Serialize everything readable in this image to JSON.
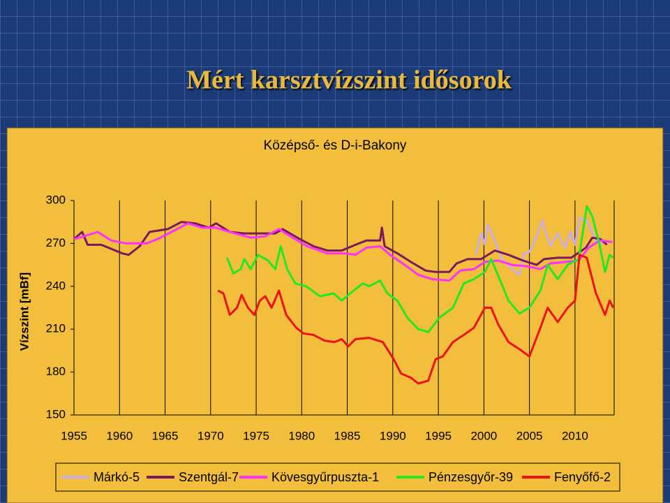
{
  "slide": {
    "title": "Mért karsztvízszint idősorok"
  },
  "chart_data": {
    "type": "line",
    "title": "Középső- és D-i-Bakony",
    "y_label": "Vízszint [mBf]",
    "xlim": [
      1955,
      2014.3
    ],
    "xticks": [
      1955,
      1960,
      1965,
      1970,
      1975,
      1980,
      1985,
      1990,
      1995,
      2000,
      2005,
      2010
    ],
    "ylim": [
      150,
      300
    ],
    "yticks": [
      150,
      180,
      210,
      240,
      270,
      300
    ],
    "grid": "x",
    "legend": "bottom",
    "series": [
      {
        "name": "Márkó-5",
        "color": "#c9aee3",
        "x": [
          1999.1,
          1999.7,
          2000.1,
          2000.4,
          2001.2,
          2002.0,
          2003.1,
          2003.9,
          2004.4,
          2005.0,
          2005.7,
          2006.4,
          2007.3,
          2008.1,
          2008.9,
          2009.5,
          2010.0,
          2010.5,
          2011.3,
          2012.3,
          2013.0
        ],
        "values": [
          262,
          277,
          269,
          283,
          272,
          259,
          252,
          248,
          263,
          264,
          274,
          286,
          268,
          277,
          267,
          278,
          269,
          288,
          286,
          272,
          269
        ]
      },
      {
        "name": "Szentgál-7",
        "color": "#7a1a5c",
        "x": [
          1955.0,
          1955.9,
          1956.5,
          1958.0,
          1960.3,
          1961.0,
          1962.2,
          1963.3,
          1965.3,
          1966.8,
          1968.3,
          1969.8,
          1970.6,
          1972.1,
          1973.7,
          1975.2,
          1977.1,
          1977.9,
          1979.8,
          1981.3,
          1982.8,
          1984.4,
          1985.9,
          1987.1,
          1988.6,
          1988.8,
          1989.1,
          1990.5,
          1992.0,
          1993.6,
          1994.7,
          1996.2,
          1997.0,
          1998.2,
          1999.7,
          2001.2,
          2002.7,
          2004.3,
          2005.8,
          2006.6,
          2008.1,
          2009.6,
          2011.2,
          2011.9,
          2012.8,
          2013.5
        ],
        "values": [
          273,
          278,
          269,
          269,
          263,
          262,
          268,
          278,
          280,
          285,
          284,
          281,
          284,
          278,
          277,
          277,
          277,
          280,
          273,
          268,
          265,
          265,
          269,
          272,
          272,
          281,
          268,
          263,
          257,
          251,
          250,
          250,
          256,
          259,
          259,
          265,
          262,
          258,
          255,
          259,
          260,
          260,
          267,
          274,
          273,
          269
        ]
      },
      {
        "name": "Kövesgyűrpuszta-1",
        "color": "#ff30ff",
        "x": [
          1955.0,
          1956.1,
          1957.6,
          1959.1,
          1960.7,
          1963.0,
          1964.5,
          1966.0,
          1967.5,
          1969.1,
          1970.6,
          1972.1,
          1974.4,
          1976.0,
          1977.5,
          1979.0,
          1980.6,
          1982.8,
          1984.8,
          1985.9,
          1987.1,
          1988.6,
          1989.7,
          1991.3,
          1992.8,
          1994.3,
          1996.2,
          1997.4,
          1998.9,
          2000.1,
          2001.6,
          2003.1,
          2004.7,
          2006.2,
          2007.3,
          2008.9,
          2010.4,
          2011.5,
          2012.7,
          2014.1
        ],
        "values": [
          273,
          275,
          278,
          272,
          270,
          270,
          274,
          279,
          284,
          281,
          281,
          278,
          274,
          275,
          280,
          274,
          268,
          263,
          263,
          262,
          267,
          268,
          262,
          255,
          248,
          245,
          244,
          251,
          252,
          257,
          258,
          255,
          254,
          252,
          256,
          257,
          258,
          267,
          272,
          271
        ]
      },
      {
        "name": "Pénzesgyőr-39",
        "color": "#22e822",
        "x": [
          1971.8,
          1972.5,
          1973.3,
          1973.7,
          1974.4,
          1975.2,
          1976.3,
          1977.1,
          1977.7,
          1978.4,
          1979.3,
          1980.5,
          1982.0,
          1983.5,
          1984.4,
          1985.5,
          1986.7,
          1987.4,
          1988.6,
          1989.4,
          1990.5,
          1991.6,
          1992.8,
          1993.9,
          1995.1,
          1996.6,
          1997.8,
          1998.9,
          2000.1,
          2000.8,
          2001.6,
          2002.7,
          2003.9,
          2005.0,
          2006.2,
          2007.0,
          2008.1,
          2009.2,
          2010.4,
          2011.3,
          2011.9,
          2012.7,
          2013.3,
          2013.8,
          2014.2
        ],
        "values": [
          260,
          249,
          252,
          259,
          252,
          262,
          258,
          252,
          268,
          252,
          242,
          240,
          233,
          235,
          230,
          236,
          242,
          240,
          244,
          235,
          230,
          218,
          210,
          208,
          218,
          225,
          242,
          245,
          250,
          259,
          247,
          230,
          221,
          225,
          237,
          255,
          245,
          255,
          259,
          296,
          289,
          269,
          250,
          262,
          260
        ]
      },
      {
        "name": "Fenyőfő-2",
        "color": "#ee1111",
        "x": [
          1970.8,
          1971.4,
          1972.1,
          1972.9,
          1973.4,
          1974.1,
          1974.8,
          1975.4,
          1976.0,
          1976.7,
          1977.5,
          1978.3,
          1979.4,
          1980.2,
          1981.3,
          1982.5,
          1983.6,
          1984.4,
          1985.1,
          1985.9,
          1987.4,
          1988.9,
          1990.1,
          1990.9,
          1992.0,
          1992.8,
          1993.9,
          1994.7,
          1995.5,
          1996.6,
          1997.8,
          1998.9,
          2000.1,
          2000.8,
          2001.6,
          2002.7,
          2003.9,
          2005.0,
          2006.2,
          2007.0,
          2008.1,
          2009.2,
          2010.0,
          2010.5,
          2011.3,
          2012.3,
          2013.3,
          2013.8,
          2014.2
        ],
        "values": [
          237,
          235,
          220,
          225,
          234,
          225,
          220,
          230,
          233,
          225,
          237,
          220,
          211,
          207,
          206,
          202,
          201,
          203,
          198,
          203,
          204,
          201,
          189,
          179,
          176,
          172,
          174,
          189,
          191,
          201,
          206,
          211,
          225,
          225,
          213,
          201,
          196,
          191,
          211,
          225,
          215,
          225,
          230,
          262,
          260,
          235,
          220,
          230,
          225
        ]
      }
    ]
  }
}
